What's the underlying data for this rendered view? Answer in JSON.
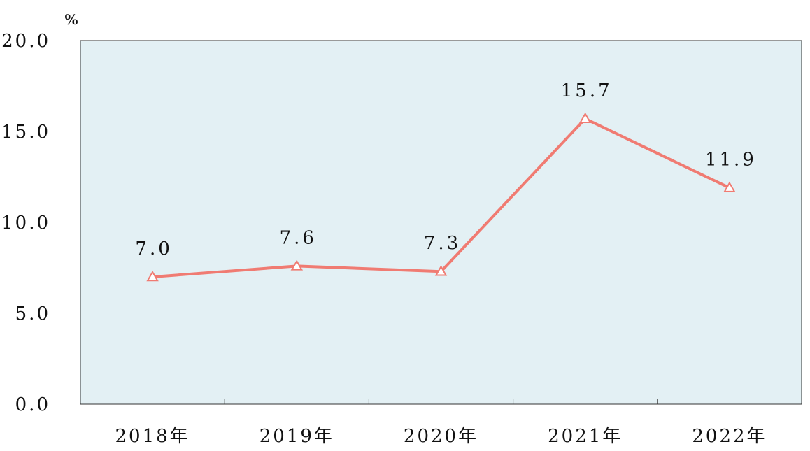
{
  "chart_data": {
    "type": "line",
    "categories": [
      "2018年",
      "2019年",
      "2020年",
      "2021年",
      "2022年"
    ],
    "series": [
      {
        "values": [
          7.0,
          7.6,
          7.3,
          15.7,
          11.9
        ]
      }
    ],
    "data_labels": [
      "7.0",
      "7.6",
      "7.3",
      "15.7",
      "11.9"
    ],
    "y_unit": "%",
    "ylim": [
      0,
      20
    ],
    "y_ticks": [
      0,
      5,
      10,
      15,
      20
    ],
    "y_tick_labels": [
      "0.0",
      "5.0",
      "10.0",
      "15.0",
      "20.0"
    ],
    "grid": false,
    "marker": "triangle",
    "colors": {
      "plot_background": "#e3f0f4",
      "line": "#f07b72",
      "axis": "#333333"
    }
  }
}
